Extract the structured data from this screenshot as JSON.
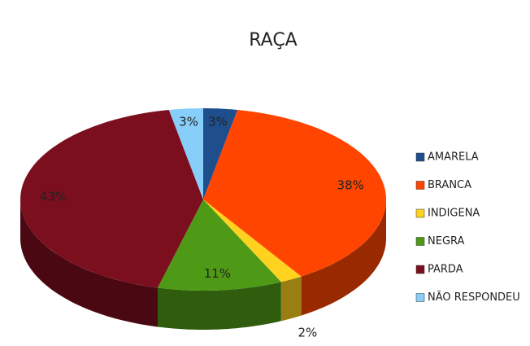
{
  "chart_data": {
    "type": "pie3d",
    "title": "RAÇA",
    "categories": [
      "AMARELA",
      "BRANCA",
      "INDIGENA",
      "NEGRA",
      "PARDA",
      "NÃO RESPONDEU"
    ],
    "values": [
      3,
      38,
      2,
      11,
      43,
      3
    ],
    "value_labels": [
      "3%",
      "38%",
      "2%",
      "11%",
      "43%",
      "3%"
    ],
    "colors": [
      "#1f4e8c",
      "#ff4500",
      "#ffd21f",
      "#4e9a16",
      "#7b0f1e",
      "#87cefa"
    ],
    "legend": "right"
  }
}
